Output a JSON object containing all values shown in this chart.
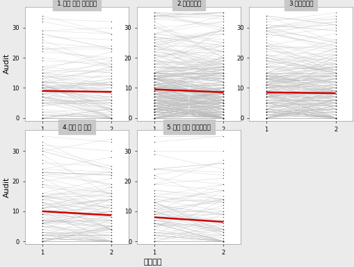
{
  "panels": [
    {
      "title": "1.신입 또는 소방학교",
      "slope": -0.3607,
      "intercept": 9.0,
      "n": 120,
      "y_range": [
        0,
        35
      ]
    },
    {
      "title": "2.화재진압군",
      "slope": -0.9713,
      "intercept": 9.5,
      "n": 380,
      "y_range": [
        0,
        35
      ]
    },
    {
      "title": "3.구급구조군",
      "slope": -0.2771,
      "intercept": 8.5,
      "n": 280,
      "y_range": [
        0,
        35
      ]
    },
    {
      "title": "4.행정 및 기타",
      "slope": -1.3391,
      "intercept": 10.0,
      "n": 130,
      "y_range": [
        0,
        35
      ]
    },
    {
      "title": "5.퇴직 또는 퇴직예정자",
      "slope": -1.5563,
      "intercept": 8.0,
      "n": 100,
      "y_range": [
        0,
        35
      ]
    }
  ],
  "xlabel": "검진횟수",
  "ylabel": "Audit",
  "x_ticks": [
    1,
    2
  ],
  "bg_color": "#ebebeb",
  "panel_bg": "#ffffff",
  "line_color": "#bbbbbb",
  "red_color": "#cc0000",
  "title_bg": "#c8c8c8",
  "title_fontsize": 6.5,
  "axis_fontsize": 6,
  "label_fontsize": 8,
  "line_alpha": 0.5,
  "line_lw": 0.4,
  "red_lw": 1.8,
  "dot_color": "#333333"
}
